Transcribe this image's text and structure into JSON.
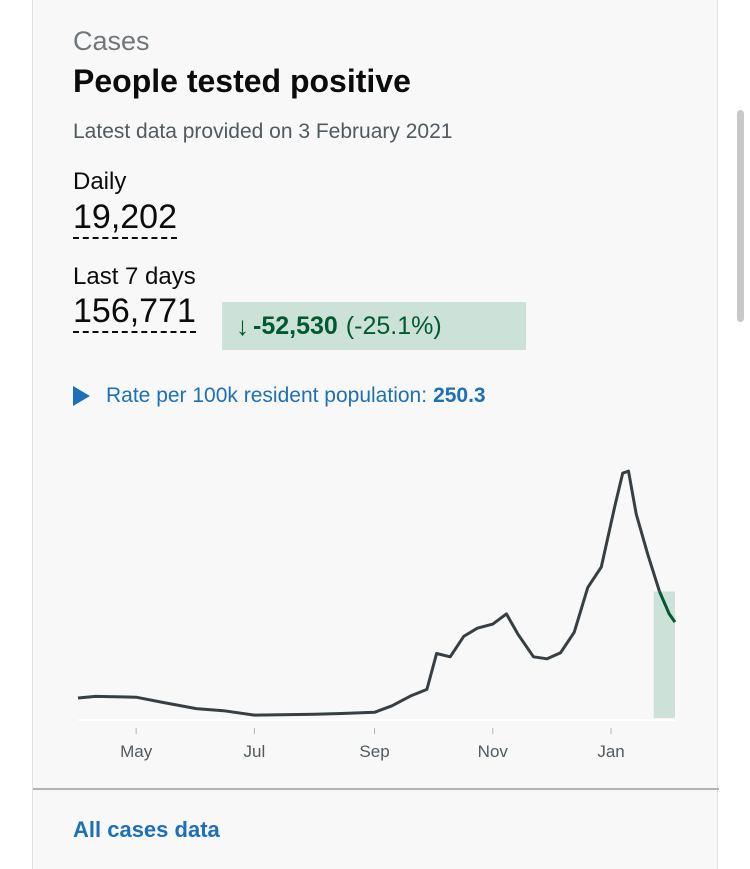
{
  "caption": "Cases",
  "title": "People tested positive",
  "updated": "Latest data provided on 3 February 2021",
  "daily": {
    "label": "Daily",
    "value": "19,202"
  },
  "last7": {
    "label": "Last 7 days",
    "value": "156,771"
  },
  "change": {
    "arrow": "↓",
    "value": "-52,530",
    "percent": "(-25.1%)"
  },
  "rate": {
    "label": "Rate per 100k resident population:",
    "value": "250.3"
  },
  "footer_link": "All cases data",
  "colors": {
    "line": "#383f43",
    "recent_line": "#005a30",
    "recent_band": "#cce2d8",
    "link": "#1d70b8"
  },
  "chart_data": {
    "type": "line",
    "x_axis": "date",
    "x_ticks": [
      "May",
      "Jul",
      "Sep",
      "Nov",
      "Jan"
    ],
    "x_tick_dates": [
      "2020-05-01",
      "2020-07-01",
      "2020-09-01",
      "2020-11-01",
      "2021-01-01"
    ],
    "xlim": [
      "2020-04-01",
      "2021-02-03"
    ],
    "ylim": [
      0,
      62000
    ],
    "grid": false,
    "recent_window_start": "2021-01-23",
    "series": [
      {
        "values": [
          [
            "2020-04-01",
            4900
          ],
          [
            "2020-04-10",
            5300
          ],
          [
            "2020-04-20",
            5200
          ],
          [
            "2020-05-01",
            5100
          ],
          [
            "2020-05-15",
            3800
          ],
          [
            "2020-06-01",
            2300
          ],
          [
            "2020-06-15",
            1800
          ],
          [
            "2020-07-01",
            700
          ],
          [
            "2020-07-15",
            800
          ],
          [
            "2020-08-01",
            900
          ],
          [
            "2020-08-15",
            1100
          ],
          [
            "2020-09-01",
            1400
          ],
          [
            "2020-09-10",
            3000
          ],
          [
            "2020-09-20",
            5500
          ],
          [
            "2020-09-28",
            7000
          ],
          [
            "2020-10-03",
            15800
          ],
          [
            "2020-10-10",
            15000
          ],
          [
            "2020-10-17",
            20000
          ],
          [
            "2020-10-24",
            22000
          ],
          [
            "2020-11-01",
            23000
          ],
          [
            "2020-11-08",
            25500
          ],
          [
            "2020-11-14",
            20500
          ],
          [
            "2020-11-22",
            15000
          ],
          [
            "2020-11-29",
            14500
          ],
          [
            "2020-12-06",
            16000
          ],
          [
            "2020-12-13",
            21000
          ],
          [
            "2020-12-20",
            32000
          ],
          [
            "2020-12-27",
            37000
          ],
          [
            "2021-01-03",
            52000
          ],
          [
            "2021-01-07",
            60000
          ],
          [
            "2021-01-10",
            60500
          ],
          [
            "2021-01-14",
            50000
          ],
          [
            "2021-01-20",
            40000
          ],
          [
            "2021-01-26",
            31000
          ],
          [
            "2021-01-31",
            25500
          ],
          [
            "2021-02-03",
            23500
          ]
        ]
      }
    ]
  }
}
